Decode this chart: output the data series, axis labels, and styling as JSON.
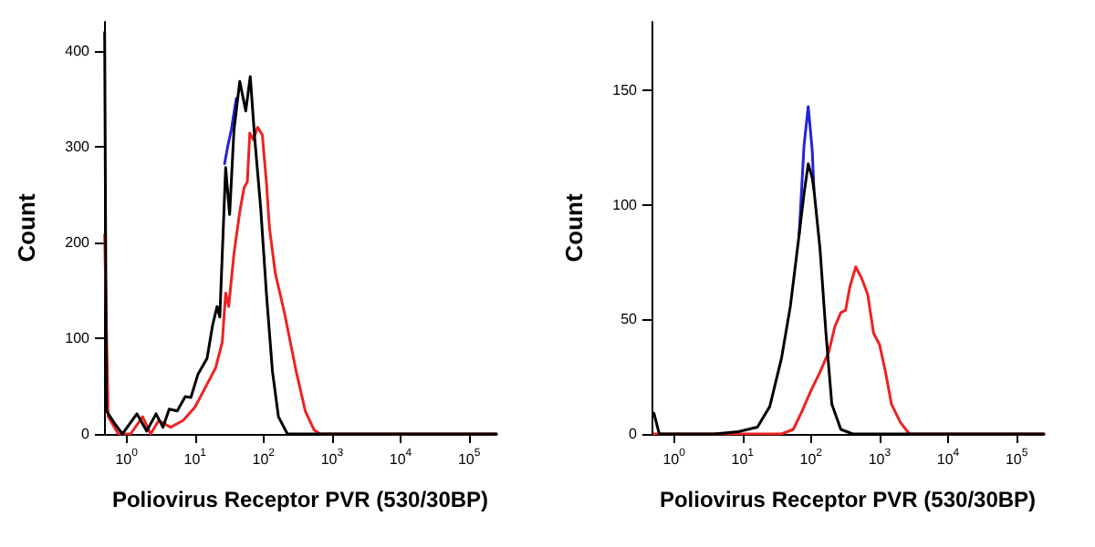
{
  "chart_data": [
    {
      "type": "line",
      "xlabel": "Poliovirus Receptor PVR (530/30BP)",
      "ylabel": "Count",
      "log": "x",
      "grid": false,
      "marker": "none",
      "line_style": "solid",
      "xlim": [
        0.47,
        250000
      ],
      "xticks": [
        {
          "value": 1,
          "label": "10$^{0}$"
        },
        {
          "value": 10,
          "label": "10$^{1}$"
        },
        {
          "value": 100,
          "label": "10$^{2}$"
        },
        {
          "value": 1000,
          "label": "10$^{3}$"
        },
        {
          "value": 10000,
          "label": "10$^{4}$"
        },
        {
          "value": 100000,
          "label": "10$^{5}$"
        }
      ],
      "ylim": [
        0,
        430
      ],
      "yticks": [
        0,
        100,
        200,
        300,
        400
      ],
      "series": [
        {
          "color": "#ee2222",
          "x": [
            0.48,
            0.54,
            0.76,
            1.15,
            1.72,
            2.25,
            2.95,
            4.4,
            6.7,
            10,
            15,
            20,
            25,
            28,
            31,
            37,
            45,
            52,
            58,
            63,
            71,
            82,
            96,
            110,
            122,
            149,
            201,
            300,
            406,
            548,
            670,
            250000
          ],
          "values": [
            208,
            18,
            0,
            0,
            18,
            0,
            14,
            7,
            14,
            28,
            52,
            69,
            96,
            147,
            133,
            188,
            232,
            257,
            263,
            314,
            307,
            320,
            312,
            263,
            215,
            167,
            127,
            65,
            24,
            4,
            0,
            0
          ]
        },
        {
          "color": "#2222dd",
          "x": [
            27,
            30,
            34,
            40
          ],
          "values": [
            282,
            300,
            318,
            350
          ]
        },
        {
          "color": "#000000",
          "x": [
            0.48,
            0.51,
            0.67,
            0.87,
            1.42,
            1.97,
            2.7,
            3.4,
            4.2,
            5.5,
            7.2,
            8.7,
            11,
            15,
            18,
            21,
            23,
            28,
            32,
            37,
            45,
            55,
            64,
            74,
            91,
            110,
            135,
            165,
            223,
            810,
            250000
          ],
          "values": [
            419,
            24,
            11,
            0,
            21,
            3,
            21,
            7,
            26,
            24,
            39,
            38,
            62,
            79,
            113,
            133,
            122,
            278,
            229,
            317,
            368,
            337,
            373,
            310,
            235,
            147,
            65,
            18,
            0,
            0,
            0
          ]
        }
      ]
    },
    {
      "type": "line",
      "xlabel": "Poliovirus Receptor PVR (530/30BP)",
      "ylabel": "Count",
      "log": "x",
      "grid": false,
      "marker": "none",
      "line_style": "solid",
      "xlim": [
        0.47,
        250000
      ],
      "xticks": [
        {
          "value": 1,
          "label": "10$^{0}$"
        },
        {
          "value": 10,
          "label": "10$^{1}$"
        },
        {
          "value": 100,
          "label": "10$^{2}$"
        },
        {
          "value": 1000,
          "label": "10$^{3}$"
        },
        {
          "value": 10000,
          "label": "10$^{4}$"
        },
        {
          "value": 100000,
          "label": "10$^{5}$"
        }
      ],
      "ylim": [
        0,
        180
      ],
      "yticks": [
        0,
        50,
        100,
        150
      ],
      "series": [
        {
          "color": "#ee2222",
          "x": [
            0.51,
            37,
            55,
            74,
            100,
            135,
            182,
            223,
            272,
            319,
            367,
            449,
            548,
            670,
            818,
            1000,
            1222,
            1493,
            2014,
            2723,
            250000
          ],
          "values": [
            0,
            0,
            2,
            10,
            19,
            27,
            36,
            47,
            53,
            54,
            64,
            73,
            68,
            61,
            44,
            39,
            27,
            13,
            5,
            0,
            0
          ]
        },
        {
          "color": "#2222dd",
          "x": [
            67,
            79,
            91,
            104,
            110
          ],
          "values": [
            87,
            126,
            143,
            124,
            107
          ]
        },
        {
          "color": "#000000",
          "x": [
            0.51,
            0.61,
            3.9,
            8.7,
            16.5,
            25,
            37,
            50,
            67,
            79,
            91,
            104,
            110,
            135,
            165,
            201,
            272,
            406,
            250000
          ],
          "values": [
            9,
            0,
            0,
            1,
            3,
            12,
            33,
            56,
            87,
            105,
            118,
            112,
            107,
            81,
            44,
            13,
            2,
            0,
            0
          ]
        }
      ]
    }
  ]
}
